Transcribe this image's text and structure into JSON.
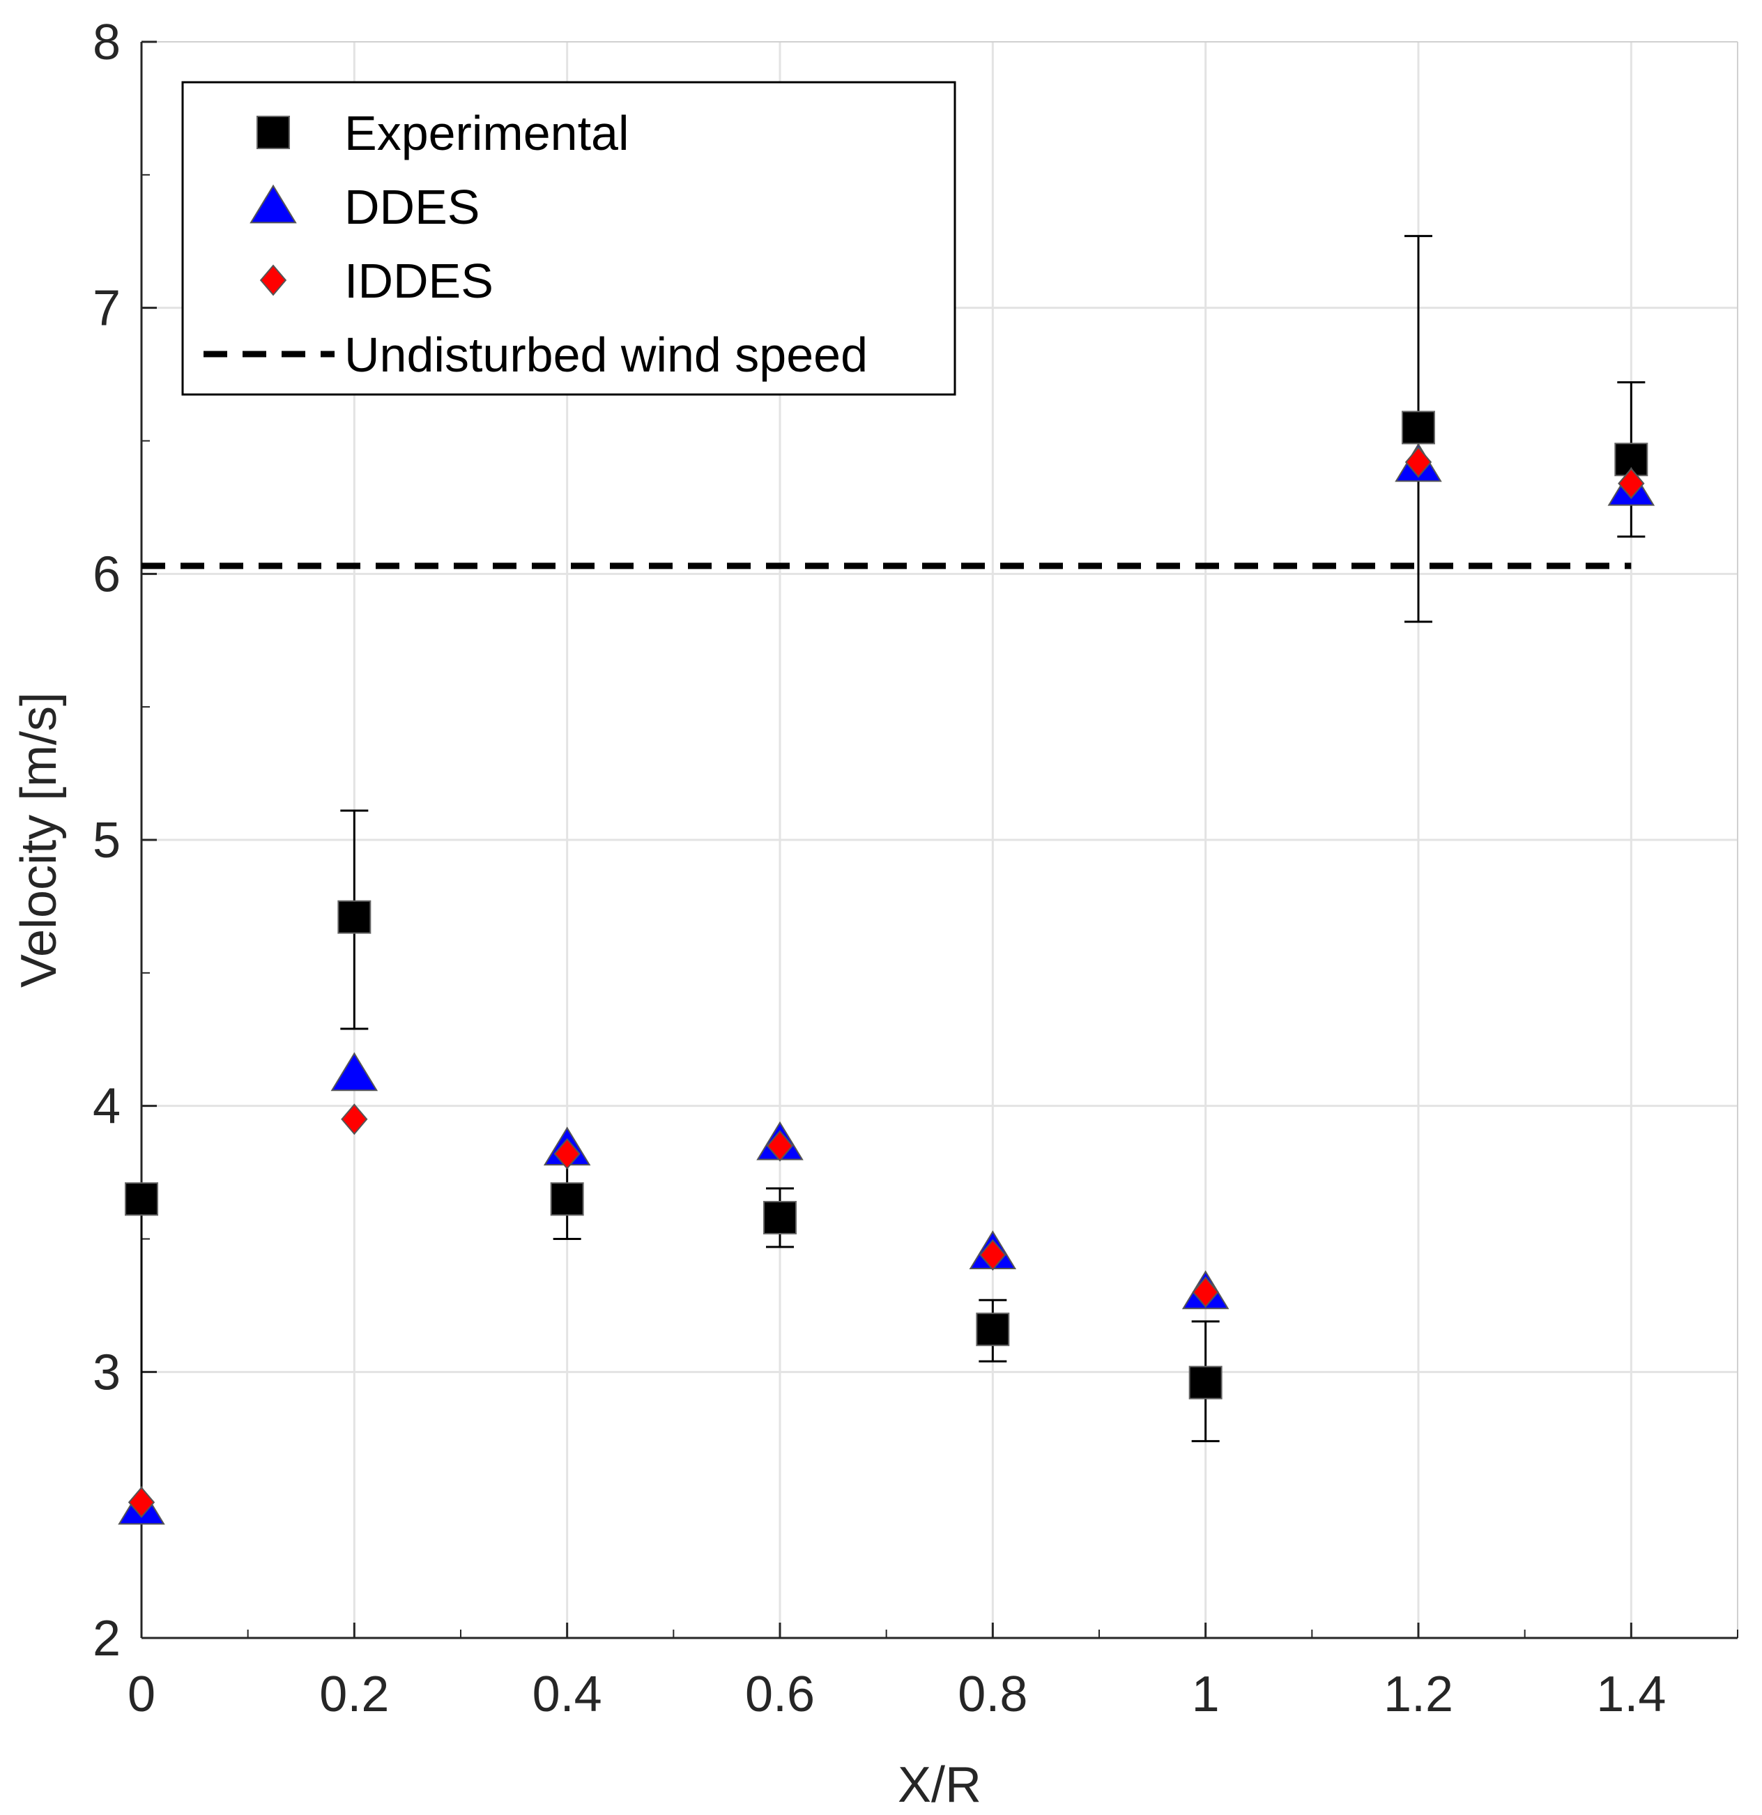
{
  "chart_data": {
    "type": "scatter",
    "xlabel": "X/R",
    "ylabel": "Velocity [m/s]",
    "xlim": [
      0,
      1.5
    ],
    "ylim": [
      2,
      8
    ],
    "xticks": [
      "0",
      "0.2",
      "0.4",
      "0.6",
      "0.8",
      "1",
      "1.2",
      "1.4"
    ],
    "yticks": [
      "2",
      "3",
      "4",
      "5",
      "6",
      "7",
      "8"
    ],
    "grid": true,
    "legend_position": "top-left",
    "series": [
      {
        "name": "Experimental",
        "marker": "square",
        "color": "#000000",
        "x": [
          0,
          0.2,
          0.4,
          0.6,
          0.8,
          1.0,
          1.2,
          1.4
        ],
        "y": [
          3.65,
          4.71,
          3.65,
          3.58,
          3.16,
          2.96,
          6.55,
          6.43
        ],
        "error_low": [
          2.48,
          4.29,
          3.5,
          3.47,
          3.04,
          2.74,
          5.82,
          6.14
        ],
        "error_high": [
          3.65,
          5.11,
          3.79,
          3.69,
          3.27,
          3.19,
          7.27,
          6.72
        ]
      },
      {
        "name": "DDES",
        "marker": "triangle",
        "color": "#0000ff",
        "x": [
          0,
          0.2,
          0.4,
          0.6,
          0.8,
          1.0,
          1.2,
          1.4
        ],
        "y": [
          2.49,
          4.12,
          3.84,
          3.86,
          3.45,
          3.3,
          6.41,
          6.32
        ]
      },
      {
        "name": "IDDES",
        "marker": "diamond",
        "color": "#ff0000",
        "x": [
          0,
          0.2,
          0.4,
          0.6,
          0.8,
          1.0,
          1.2,
          1.4
        ],
        "y": [
          2.51,
          3.95,
          3.82,
          3.85,
          3.44,
          3.3,
          6.42,
          6.34
        ]
      }
    ],
    "reference_line": {
      "name": "Undisturbed wind speed",
      "y": 6.03,
      "x_range": [
        0,
        1.4
      ],
      "style": "dashed",
      "color": "#000000"
    }
  }
}
